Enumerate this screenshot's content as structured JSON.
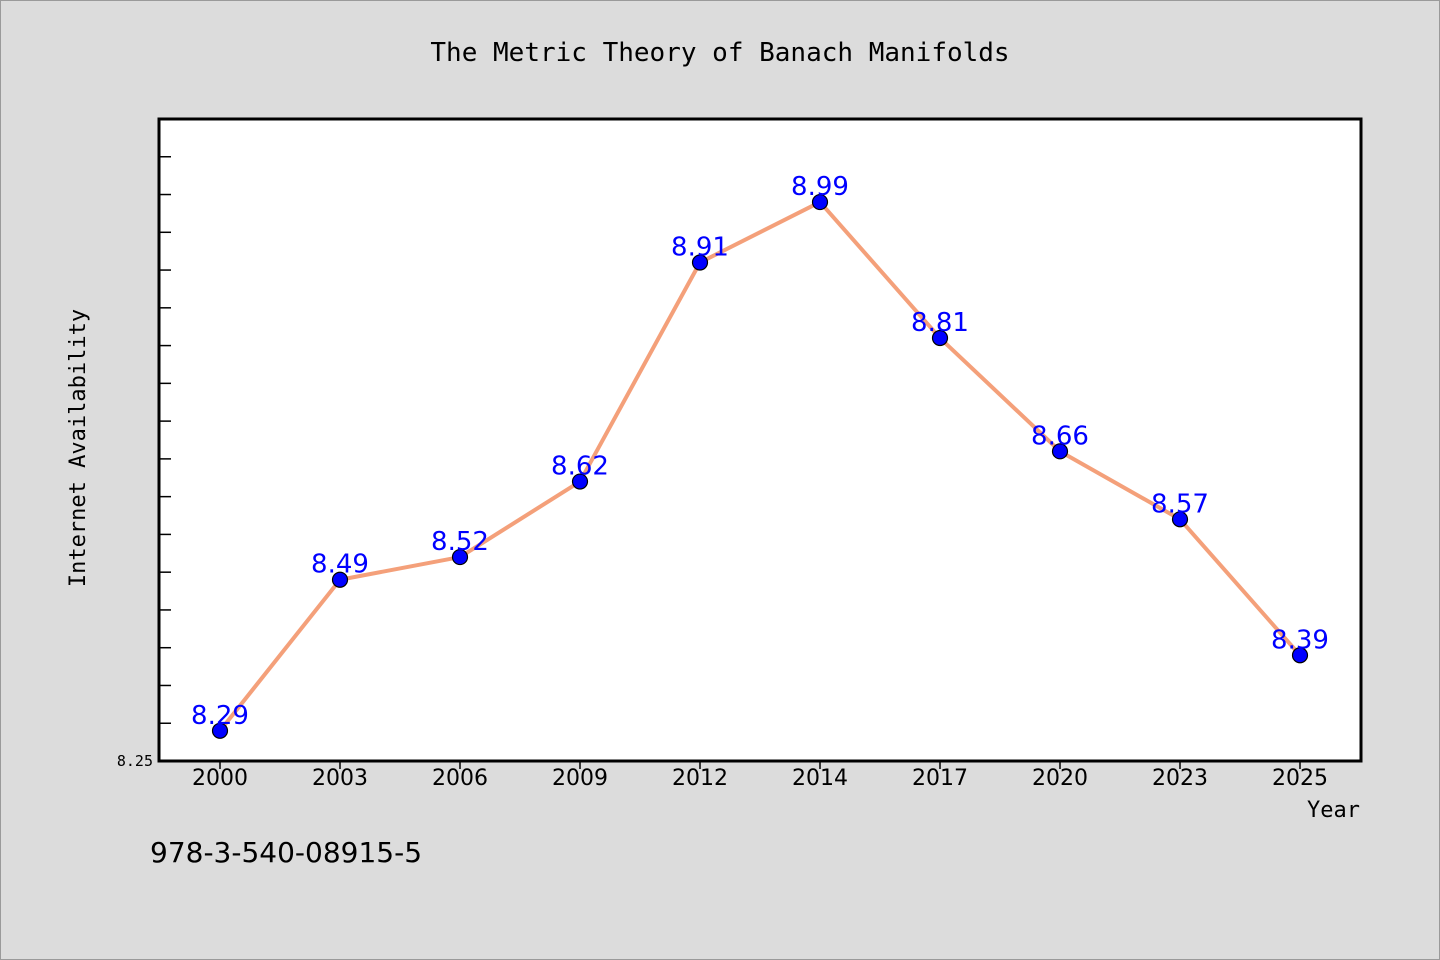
{
  "chart_data": {
    "type": "line",
    "title": "The Metric Theory of Banach Manifolds",
    "xlabel": "Year",
    "ylabel": "Internet Availability",
    "categories": [
      "2000",
      "2003",
      "2006",
      "2009",
      "2012",
      "2014",
      "2017",
      "2020",
      "2023",
      "2025"
    ],
    "series": [
      {
        "values": [
          8.29,
          8.49,
          8.52,
          8.62,
          8.91,
          8.99,
          8.81,
          8.66,
          8.57,
          8.39
        ],
        "data_labels": [
          "8.29",
          "8.49",
          "8.52",
          "8.62",
          "8.91",
          "8.99",
          "8.81",
          "8.66",
          "8.57",
          "8.39"
        ]
      }
    ],
    "ylim": [
      8.25,
      9.1
    ],
    "yticks": [
      8.25
    ],
    "ytick_labels": [
      "8.25"
    ],
    "y_minor_tick_step": 0.05,
    "grid": false,
    "legend": "none",
    "colors": {
      "figure_background": "#dcdcdc",
      "plot_background": "#ffffff",
      "line": "#f4a07a",
      "marker": "#0000ff",
      "marker_edge": "#000000",
      "data_label": "#0000ff",
      "axes": "#000000"
    }
  },
  "footer": {
    "isbn": "978-3-540-08915-5"
  }
}
